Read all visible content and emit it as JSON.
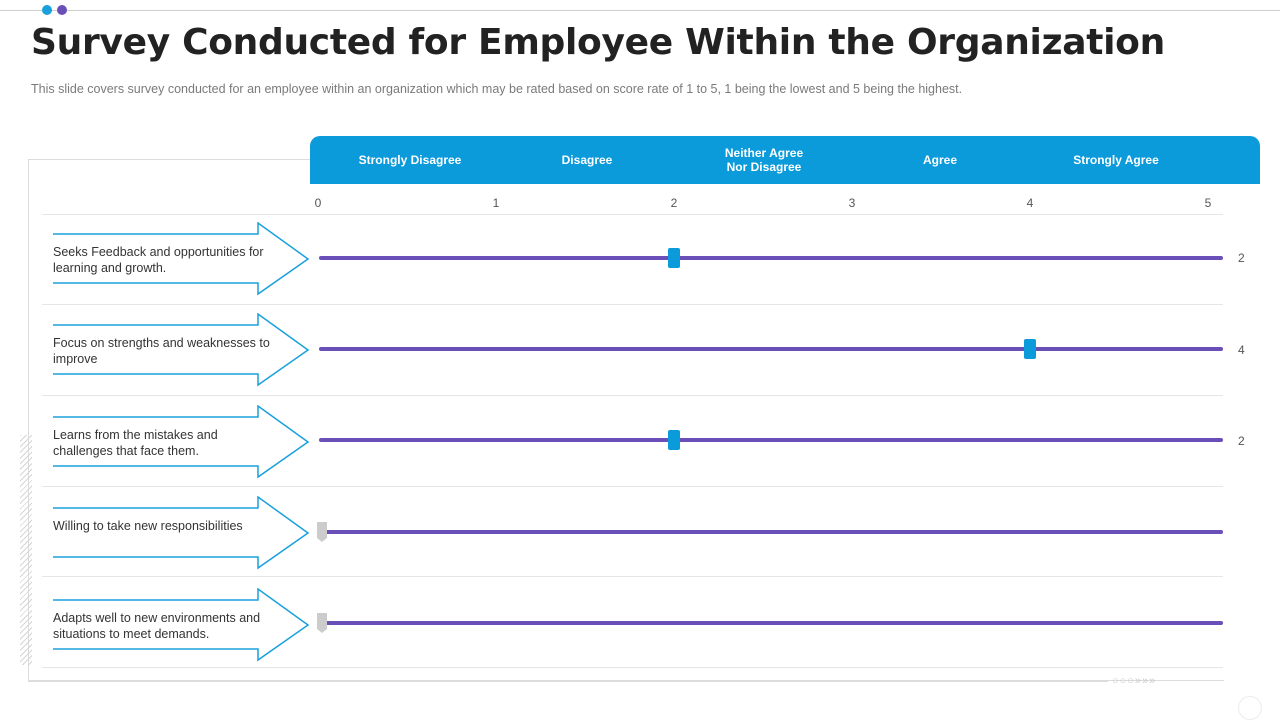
{
  "title": "Survey Conducted for Employee Within the Organization",
  "subtitle": "This slide covers survey conducted for an employee within an organization which may be rated based on score rate of 1 to 5, 1 being the lowest and 5 being the highest.",
  "colors": {
    "header": "#0b9ada",
    "track": "#6a4fb8",
    "handle": "#0b9ada",
    "arrow": "#1aa0dc",
    "empty_handle": "#cccccc",
    "dot1": "#1aa0dc",
    "dot2": "#6a4fb8"
  },
  "scale": {
    "headers": [
      "Strongly Disagree",
      "Disagree",
      "Neither Agree\nNor Disagree",
      "Agree",
      "Strongly Agree"
    ],
    "ticks": [
      "0",
      "1",
      "2",
      "3",
      "4",
      "5"
    ],
    "min": 0,
    "max": 5
  },
  "rows": [
    {
      "label": "Seeks Feedback and opportunities for learning and growth.",
      "value": 2,
      "value_label": "2"
    },
    {
      "label": "Focus on strengths and weaknesses to improve",
      "value": 4,
      "value_label": "4"
    },
    {
      "label": "Learns from the mistakes and challenges that face them.",
      "value": 2,
      "value_label": "2"
    },
    {
      "label": "Willing to take new responsibilities",
      "value": 0,
      "value_label": ""
    },
    {
      "label": "Adapts well to new environments  and situations to meet demands.",
      "value": 0,
      "value_label": ""
    }
  ],
  "decorations": {
    "footer_arrows": "○○○»»»"
  }
}
